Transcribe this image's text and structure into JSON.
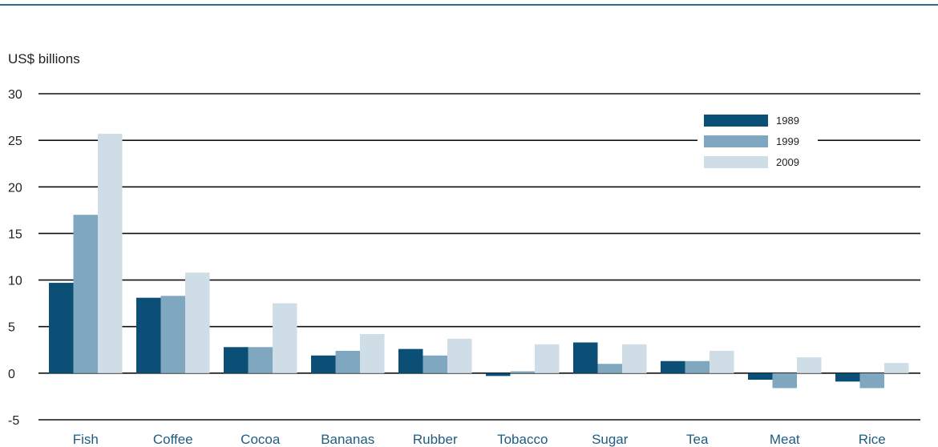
{
  "chart_data": {
    "type": "bar",
    "title": "",
    "xlabel": "",
    "ylabel": "US$ billions",
    "ylim": [
      -5,
      30
    ],
    "yticks": [
      -5,
      0,
      5,
      10,
      15,
      20,
      25,
      30
    ],
    "grid": true,
    "legend_position": "top-right",
    "categories": [
      "Fish",
      "Coffee",
      "Cocoa",
      "Bananas",
      "Rubber",
      "Tobacco",
      "Sugar",
      "Tea",
      "Meat",
      "Rice"
    ],
    "series": [
      {
        "name": "1989",
        "color": "#0b4f76",
        "values": [
          9.7,
          8.1,
          2.8,
          1.9,
          2.6,
          -0.3,
          3.3,
          1.3,
          -0.7,
          -0.9
        ]
      },
      {
        "name": "1999",
        "color": "#7fa8c0",
        "values": [
          17.0,
          8.3,
          2.8,
          2.4,
          1.9,
          0.2,
          1.0,
          1.3,
          -1.6,
          -1.6
        ]
      },
      {
        "name": "2009",
        "color": "#cfdee6",
        "values": [
          25.7,
          10.8,
          7.5,
          4.2,
          3.7,
          3.1,
          3.1,
          2.4,
          1.7,
          1.1
        ]
      }
    ]
  }
}
